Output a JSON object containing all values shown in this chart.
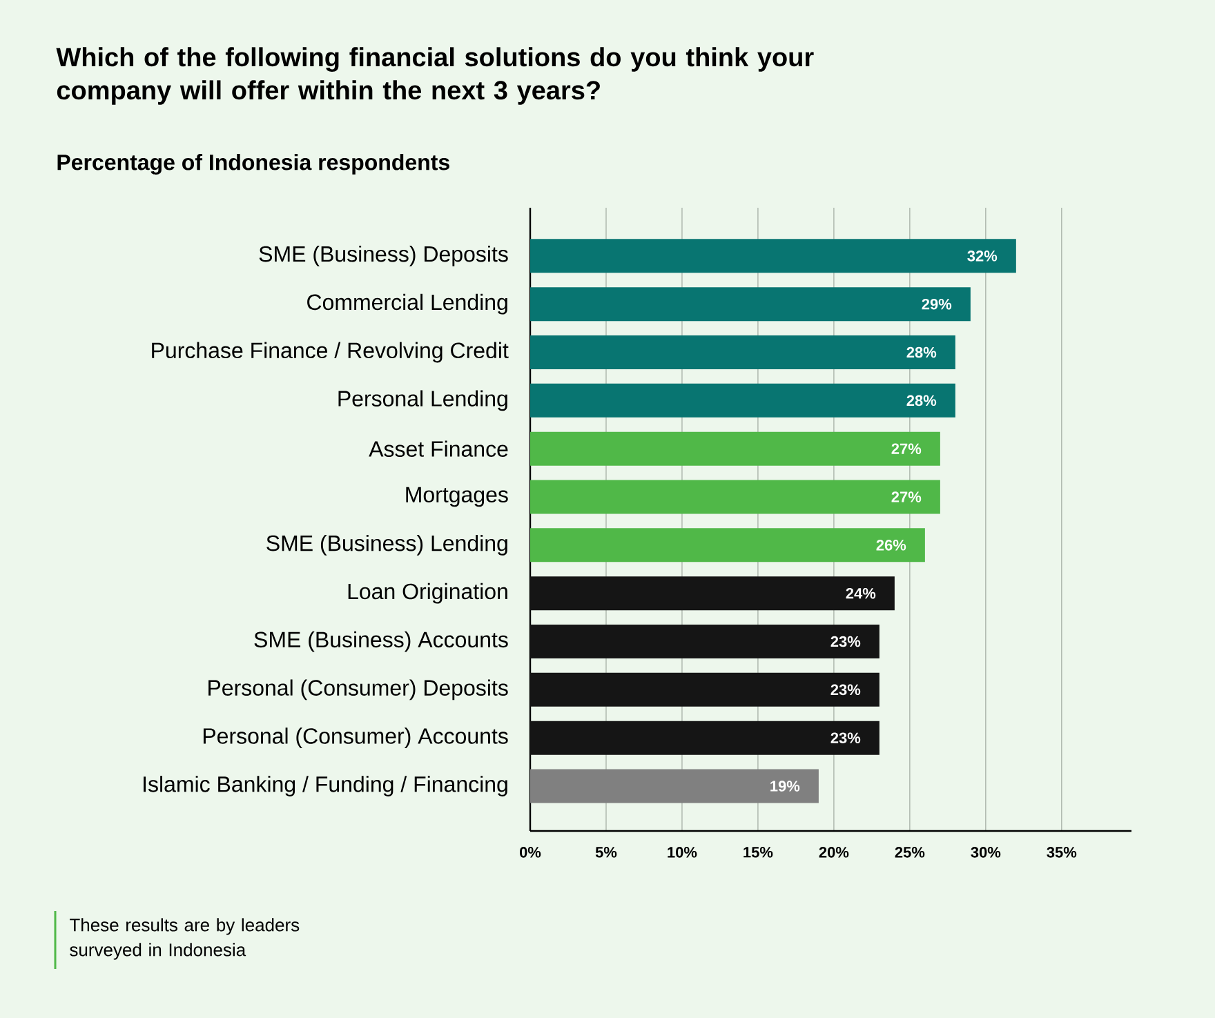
{
  "chart_data": {
    "type": "bar",
    "orientation": "horizontal",
    "title": "Which of the following financial solutions do you think your company will offer within the next 3 years?",
    "subtitle": "Percentage of Indonesia respondents",
    "categories": [
      "SME (Business) Deposits",
      "Commercial Lending",
      "Purchase Finance / Revolving Credit",
      "Personal Lending",
      "Asset Finance",
      "Mortgages",
      "SME (Business) Lending",
      "Loan Origination",
      "SME (Business) Accounts",
      "Personal (Consumer) Deposits",
      "Personal (Consumer) Accounts",
      "Islamic Banking / Funding / Financing"
    ],
    "values": [
      32,
      29,
      28,
      28,
      27,
      27,
      26,
      24,
      23,
      23,
      23,
      19
    ],
    "value_labels": [
      "32%",
      "29%",
      "28%",
      "28%",
      "27%",
      "27%",
      "26%",
      "24%",
      "23%",
      "23%",
      "23%",
      "19%"
    ],
    "colors": [
      "#087571",
      "#087571",
      "#087571",
      "#087571",
      "#50b848",
      "#50b848",
      "#50b848",
      "#151515",
      "#151515",
      "#151515",
      "#151515",
      "#808080"
    ],
    "xlim": [
      0,
      39.6
    ],
    "xticks": [
      {
        "value": 0,
        "label": "0%"
      },
      {
        "value": 5,
        "label": "5%"
      },
      {
        "value": 10,
        "label": "10%"
      },
      {
        "value": 15,
        "label": "15%"
      },
      {
        "value": 20,
        "label": "20%"
      },
      {
        "value": 25,
        "label": "25%"
      },
      {
        "value": 30,
        "label": "30%"
      },
      {
        "value": 35,
        "label": "35%"
      }
    ],
    "grid": "x",
    "annotations": [
      "These results are by leaders surveyed in Indonesia"
    ]
  }
}
